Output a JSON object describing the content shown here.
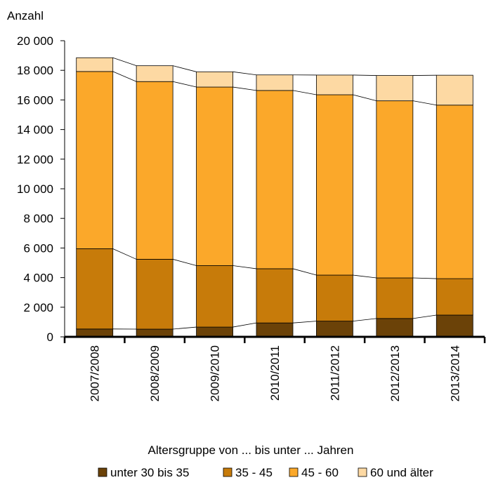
{
  "chart_data": {
    "type": "bar",
    "stacked": true,
    "ylabel": "Anzahl",
    "ylim": [
      0,
      20000
    ],
    "yticks": [
      0,
      2000,
      4000,
      6000,
      8000,
      10000,
      12000,
      14000,
      16000,
      18000,
      20000
    ],
    "ytick_labels": [
      "0",
      "2 000",
      "4 000",
      "6 000",
      "8 000",
      "10 000",
      "12 000",
      "14 000",
      "16 000",
      "18 000",
      "20 000"
    ],
    "categories": [
      "2007/2008",
      "2008/2009",
      "2009/2010",
      "2010/2011",
      "2011/2012",
      "2012/2013",
      "2013/2014"
    ],
    "series": [
      {
        "name": "unter 30 bis 35",
        "color": "#6b4208",
        "values": [
          530,
          520,
          660,
          940,
          1060,
          1240,
          1470
        ]
      },
      {
        "name": "35 - 45",
        "color": "#c77b0a",
        "values": [
          5420,
          4720,
          4150,
          3660,
          3110,
          2740,
          2460
        ]
      },
      {
        "name": "45 - 60",
        "color": "#fba82a",
        "values": [
          11970,
          12000,
          12060,
          12040,
          12180,
          11960,
          11720
        ]
      },
      {
        "name": "60 und älter",
        "color": "#fdd9a3",
        "values": [
          930,
          1070,
          1030,
          1050,
          1330,
          1710,
          2020
        ]
      }
    ],
    "legend_title": "Altersgruppe von ... bis unter ... Jahren",
    "legend_position": "bottom",
    "grid": false,
    "series_connector_lines": true
  }
}
